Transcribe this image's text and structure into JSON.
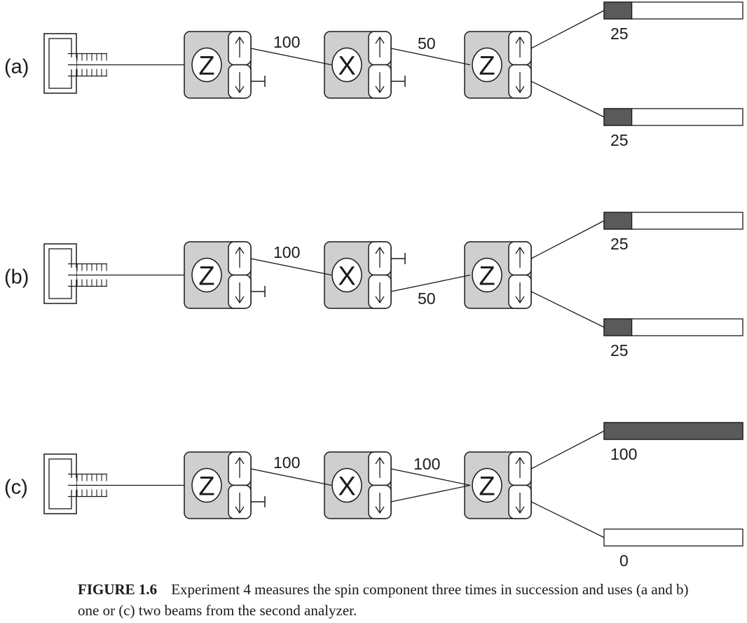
{
  "experiments": [
    {
      "label": "(a)",
      "analyzers": [
        "Z",
        "X",
        "Z"
      ],
      "beam_1_2": {
        "port": "up",
        "count": "100"
      },
      "beam_2_3": {
        "ports": [
          "up"
        ],
        "count": "50"
      },
      "blocked_ports": [
        {
          "analyzer": 1,
          "port": "down"
        },
        {
          "analyzer": 2,
          "port": "down"
        }
      ],
      "counters": [
        {
          "value": "25",
          "fill": 0.2
        },
        {
          "value": "25",
          "fill": 0.2
        }
      ]
    },
    {
      "label": "(b)",
      "analyzers": [
        "Z",
        "X",
        "Z"
      ],
      "beam_1_2": {
        "port": "up",
        "count": "100"
      },
      "beam_2_3": {
        "ports": [
          "down"
        ],
        "count": "50"
      },
      "blocked_ports": [
        {
          "analyzer": 1,
          "port": "down"
        },
        {
          "analyzer": 2,
          "port": "up"
        }
      ],
      "counters": [
        {
          "value": "25",
          "fill": 0.2
        },
        {
          "value": "25",
          "fill": 0.2
        }
      ]
    },
    {
      "label": "(c)",
      "analyzers": [
        "Z",
        "X",
        "Z"
      ],
      "beam_1_2": {
        "port": "up",
        "count": "100"
      },
      "beam_2_3": {
        "ports": [
          "up",
          "down"
        ],
        "count": "100"
      },
      "blocked_ports": [
        {
          "analyzer": 1,
          "port": "down"
        }
      ],
      "counters": [
        {
          "value": "100",
          "fill": 1.0
        },
        {
          "value": "0",
          "fill": 0.0
        }
      ]
    }
  ],
  "caption": {
    "figure_label": "FIGURE 1.6",
    "text": "Experiment 4 measures the spin component three times in succession and uses (a and b) one or (c) two beams from the second analyzer."
  },
  "colors": {
    "analyzer_fill": "#cfcfcf",
    "counter_fill": "#5a5a5a",
    "line": "#1a1a1a"
  }
}
